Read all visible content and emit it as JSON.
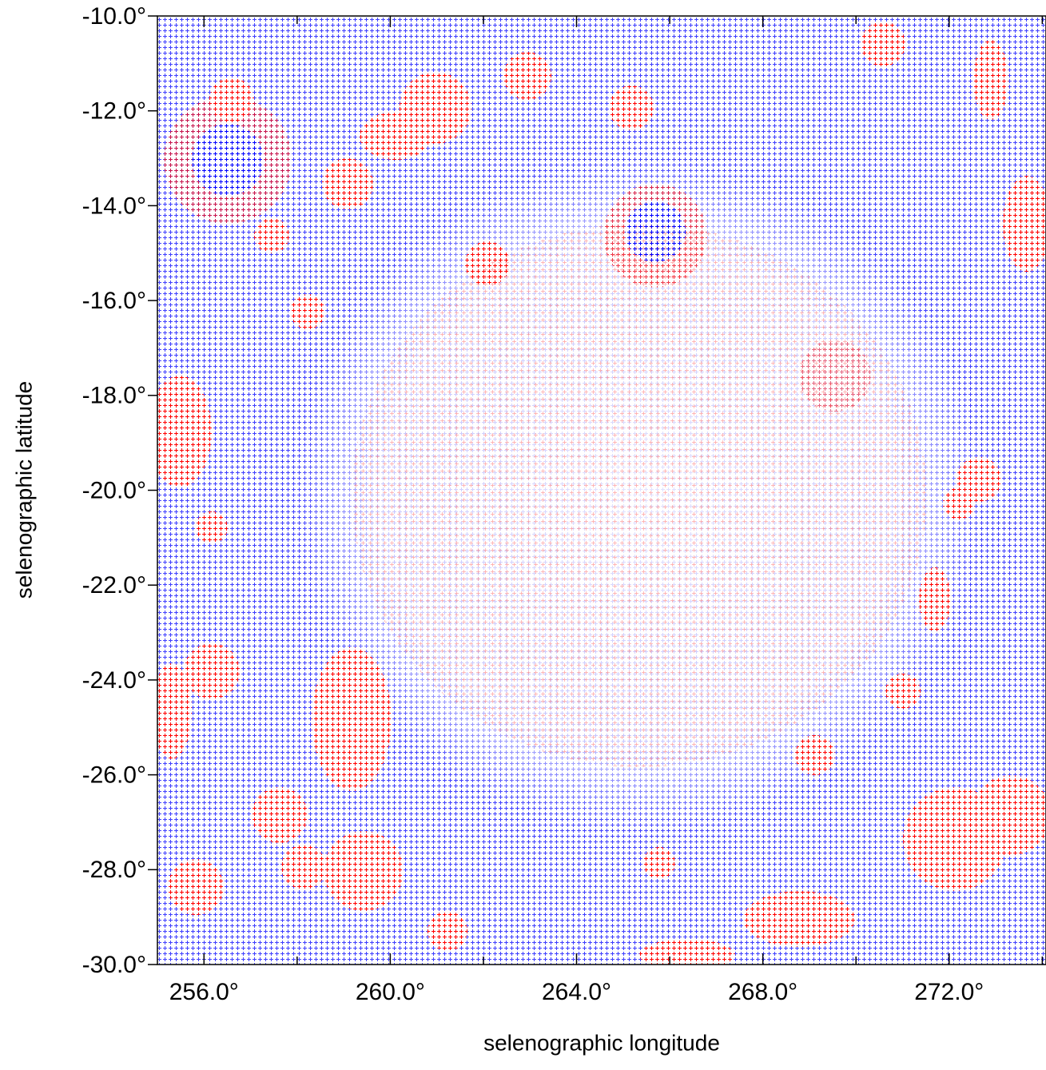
{
  "chart_data": {
    "type": "vector-field",
    "xlabel": "selenographic longitude",
    "ylabel": "selenographic latitude",
    "xlim": [
      255.0,
      274.08
    ],
    "ylim": [
      -30,
      -10
    ],
    "xticks": [
      {
        "value": 256,
        "label": "256.0°"
      },
      {
        "value": 260,
        "label": "260.0°"
      },
      {
        "value": 264,
        "label": "264.0°"
      },
      {
        "value": 268,
        "label": "268.0°"
      },
      {
        "value": 272,
        "label": "272.0°"
      }
    ],
    "xminorticks": [
      258,
      262,
      266,
      270,
      274
    ],
    "yticks": [
      {
        "value": -10,
        "label": "-10.0°"
      },
      {
        "value": -12,
        "label": "-12.0°"
      },
      {
        "value": -14,
        "label": "-14.0°"
      },
      {
        "value": -16,
        "label": "-16.0°"
      },
      {
        "value": -18,
        "label": "-18.0°"
      },
      {
        "value": -20,
        "label": "-20.0°"
      },
      {
        "value": -22,
        "label": "-22.0°"
      },
      {
        "value": -24,
        "label": "-24.0°"
      },
      {
        "value": -26,
        "label": "-26.0°"
      },
      {
        "value": -28,
        "label": "-28.0°"
      },
      {
        "value": -30,
        "label": "-30.0°"
      }
    ],
    "colors": [
      "#0000ff",
      "#ff0000"
    ]
  }
}
